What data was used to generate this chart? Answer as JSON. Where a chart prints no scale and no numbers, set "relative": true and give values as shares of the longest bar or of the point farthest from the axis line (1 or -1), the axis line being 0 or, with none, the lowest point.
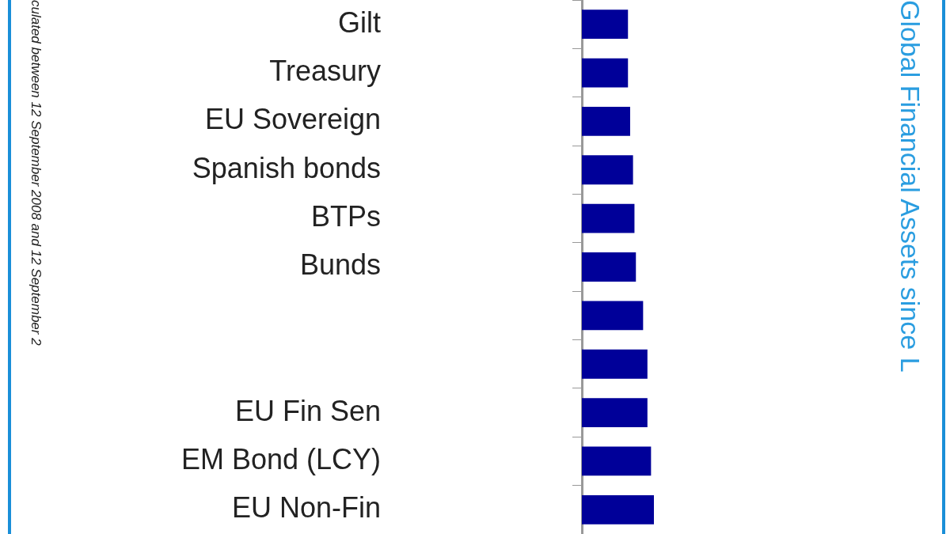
{
  "chart_data": {
    "type": "bar",
    "orientation": "horizontal",
    "relative": true,
    "title": "Global Financial Assets since L",
    "annotations": [
      "culated between 12 September 2008 and 12 September 2"
    ],
    "categories": [
      "Gilt",
      "Treasury",
      "EU Sovereign",
      "Spanish bonds",
      "BTPs",
      "Bunds",
      null,
      null,
      "EU Fin Sen",
      "EM Bond (LCY)",
      "EU Non-Fin"
    ],
    "values": [
      0.64,
      0.64,
      0.67,
      0.71,
      0.73,
      0.75,
      0.85,
      0.91,
      0.91,
      0.96,
      1
    ],
    "color": "#000099",
    "grid": false,
    "legend": false
  }
}
